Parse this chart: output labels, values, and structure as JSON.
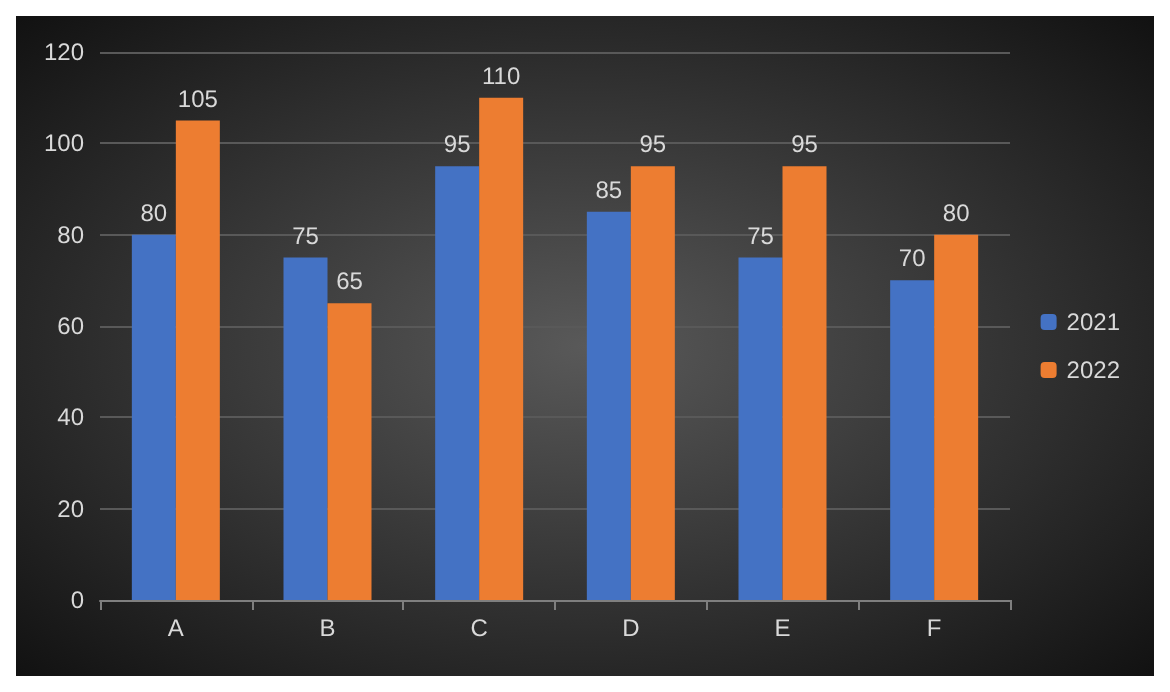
{
  "chart_data": {
    "type": "bar",
    "categories": [
      "A",
      "B",
      "C",
      "D",
      "E",
      "F"
    ],
    "series": [
      {
        "name": "2021",
        "color": "#4472c4",
        "values": [
          80,
          75,
          95,
          85,
          75,
          70
        ]
      },
      {
        "name": "2022",
        "color": "#ed7d31",
        "values": [
          105,
          65,
          110,
          95,
          95,
          80
        ]
      }
    ],
    "ylim": [
      0,
      120
    ],
    "yticks": [
      0,
      20,
      40,
      60,
      80,
      100,
      120
    ],
    "grid": "y",
    "legend": "right",
    "data_labels": true
  }
}
